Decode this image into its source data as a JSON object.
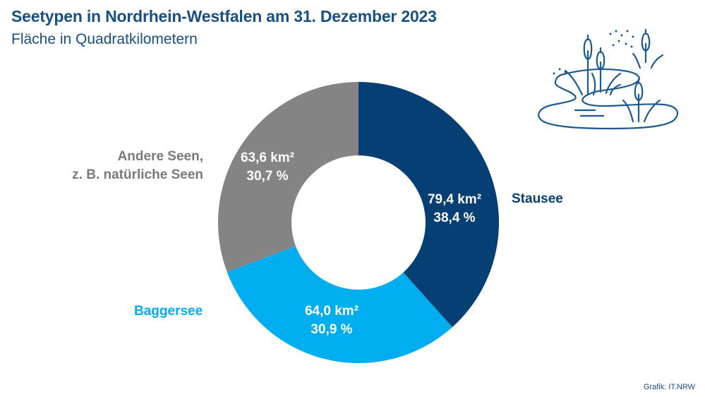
{
  "header": {
    "title": "Seetypen in Nordrhein-Westfalen am 31. Dezember 2023",
    "subtitle": "Fläche in Quadratkilometern"
  },
  "source": "Grafik: IT.NRW",
  "decoration": {
    "icon": "lake-with-reeds-icon"
  },
  "chart_data": {
    "type": "pie",
    "variant": "donut",
    "title": "Seetypen in Nordrhein-Westfalen am 31. Dezember 2023",
    "subtitle": "Fläche in Quadratkilometern",
    "unit": "km²",
    "slices": [
      {
        "label": "Stausee",
        "value": 79.4,
        "value_label": "79,4 km²",
        "percent_label": "38,4 %",
        "color": "#063f73"
      },
      {
        "label": "Baggersee",
        "value": 64.0,
        "value_label": "64,0 km²",
        "percent_label": "30,9 %",
        "color": "#00aeef"
      },
      {
        "label_lines": [
          "Andere Seen,",
          "z. B. natürliche Seen"
        ],
        "value": 63.6,
        "value_label": "63,6 km²",
        "percent_label": "30,7 %",
        "color": "#848484"
      }
    ],
    "start_angle": "12 o'clock",
    "direction": "clockwise",
    "label_text_color": "#ffffff"
  }
}
